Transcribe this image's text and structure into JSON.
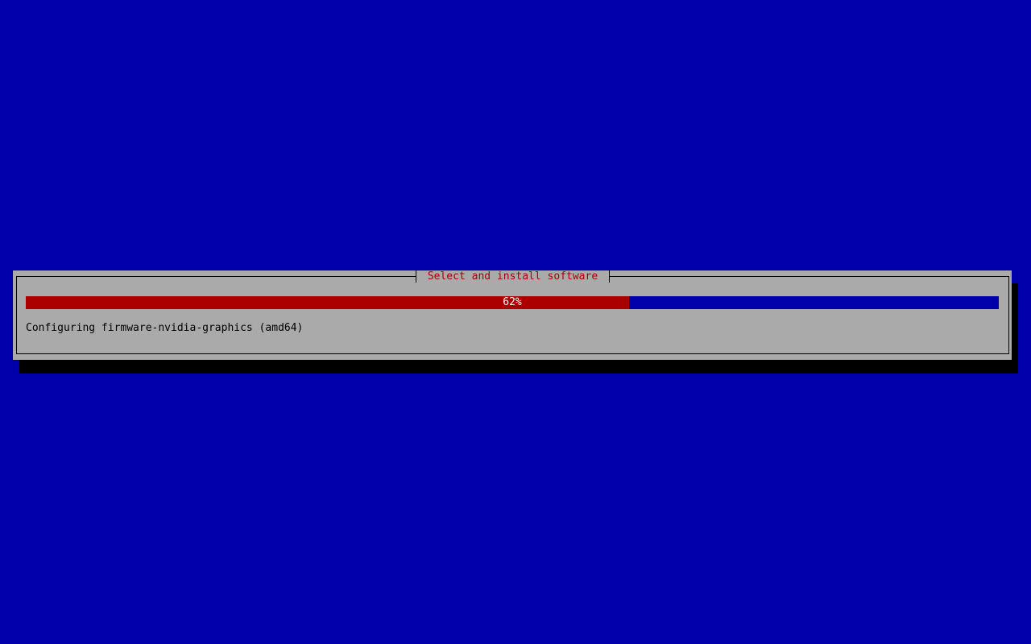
{
  "dialog": {
    "title": "Select and install software",
    "progress": {
      "percent": 62,
      "label": "62%"
    },
    "message": "Configuring firmware-nvidia-graphics (amd64)"
  },
  "colors": {
    "background": "#0000aa",
    "dialog": "#aaaaaa",
    "title": "#aa0000",
    "progress_fill": "#aa0000",
    "progress_track": "#0000aa"
  }
}
